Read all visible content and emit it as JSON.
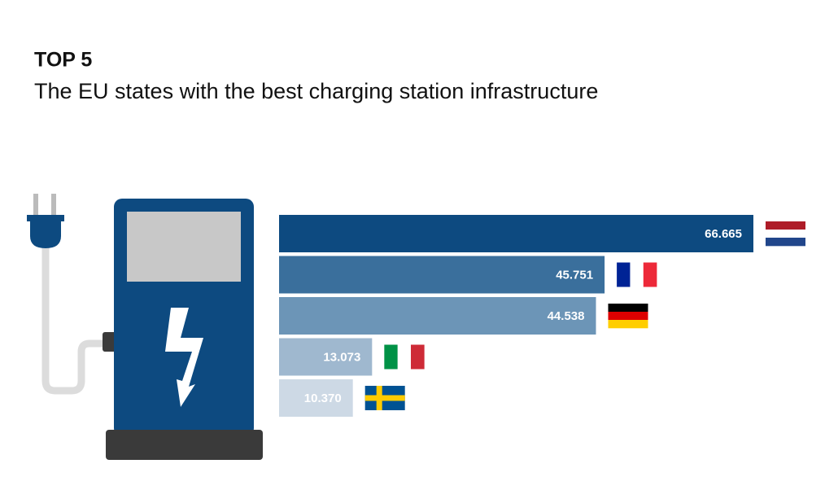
{
  "chart_data": {
    "type": "bar",
    "orientation": "horizontal",
    "title": "TOP 5",
    "subtitle": "The EU states with the best charging station infrastructure",
    "values": [
      66665,
      45751,
      44538,
      13073,
      10370
    ],
    "value_labels": [
      "66.665",
      "45.751",
      "44.538",
      "13.073",
      "10.370"
    ],
    "colors": [
      "#0d4a80",
      "#3a6f9c",
      "#6c95b7",
      "#9fb8cf",
      "#cdd9e5"
    ]
  }
}
